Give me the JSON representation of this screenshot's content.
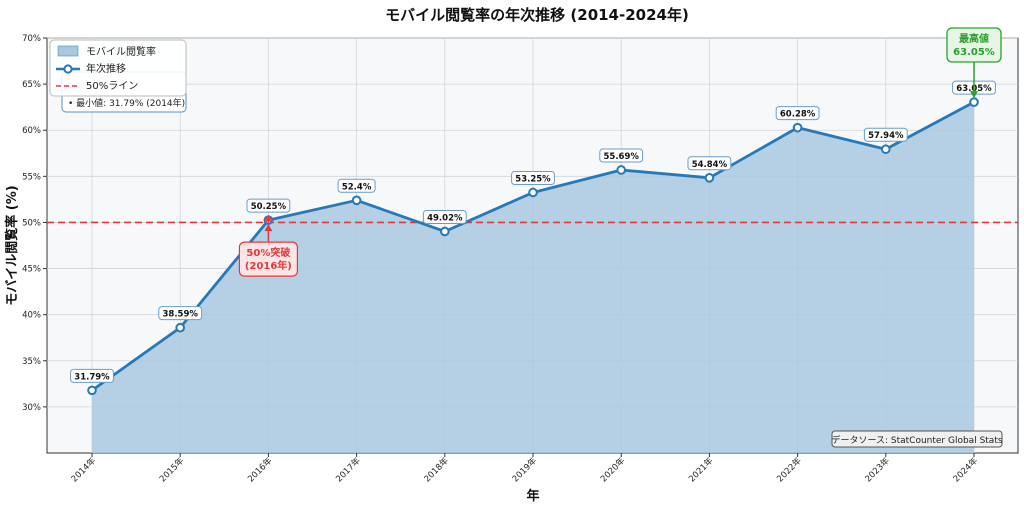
{
  "chart_data": {
    "type": "area",
    "title": "モバイル閲覧率の年次推移 (2014-2024年)",
    "xlabel": "年",
    "ylabel": "モバイル閲覧率 (%)",
    "categories": [
      "2014年",
      "2015年",
      "2016年",
      "2017年",
      "2018年",
      "2019年",
      "2020年",
      "2021年",
      "2022年",
      "2023年",
      "2024年"
    ],
    "series": [
      {
        "name": "年次推移",
        "values": [
          31.79,
          38.59,
          50.25,
          52.4,
          49.02,
          53.25,
          55.69,
          54.84,
          60.28,
          57.94,
          63.05
        ],
        "labels": [
          "31.79%",
          "38.59%",
          "50.25%",
          "52.4%",
          "49.02%",
          "53.25%",
          "55.69%",
          "54.84%",
          "60.28%",
          "57.94%",
          "63.05%"
        ]
      }
    ],
    "area_name": "モバイル閲覧率",
    "reference_line": {
      "name": "50%ライン",
      "value": 50
    },
    "ylim": [
      25,
      70
    ],
    "yticks": [
      30,
      35,
      40,
      45,
      50,
      55,
      60,
      65,
      70
    ],
    "ytick_labels": [
      "30%",
      "35%",
      "40%",
      "45%",
      "50%",
      "55%",
      "60%",
      "65%",
      "70%"
    ],
    "grid": true,
    "legend_position": "top-left",
    "annotations": {
      "max_label": "最高値\n63.05%",
      "break_label": "50%突破\n(2016年)",
      "stats_line": "• 最小値: 31.79% (2014年)",
      "source": "データソース: StatCounter Global Stats"
    },
    "colors": {
      "line": "#2878b5",
      "area": "#a9c8e0",
      "reference": "#e0393e",
      "max_box_border": "#2ca02c",
      "max_box_fill": "#e6f5e6",
      "break_box_fill": "#fde5e5",
      "plot_bg": "#f7f8fa"
    }
  }
}
